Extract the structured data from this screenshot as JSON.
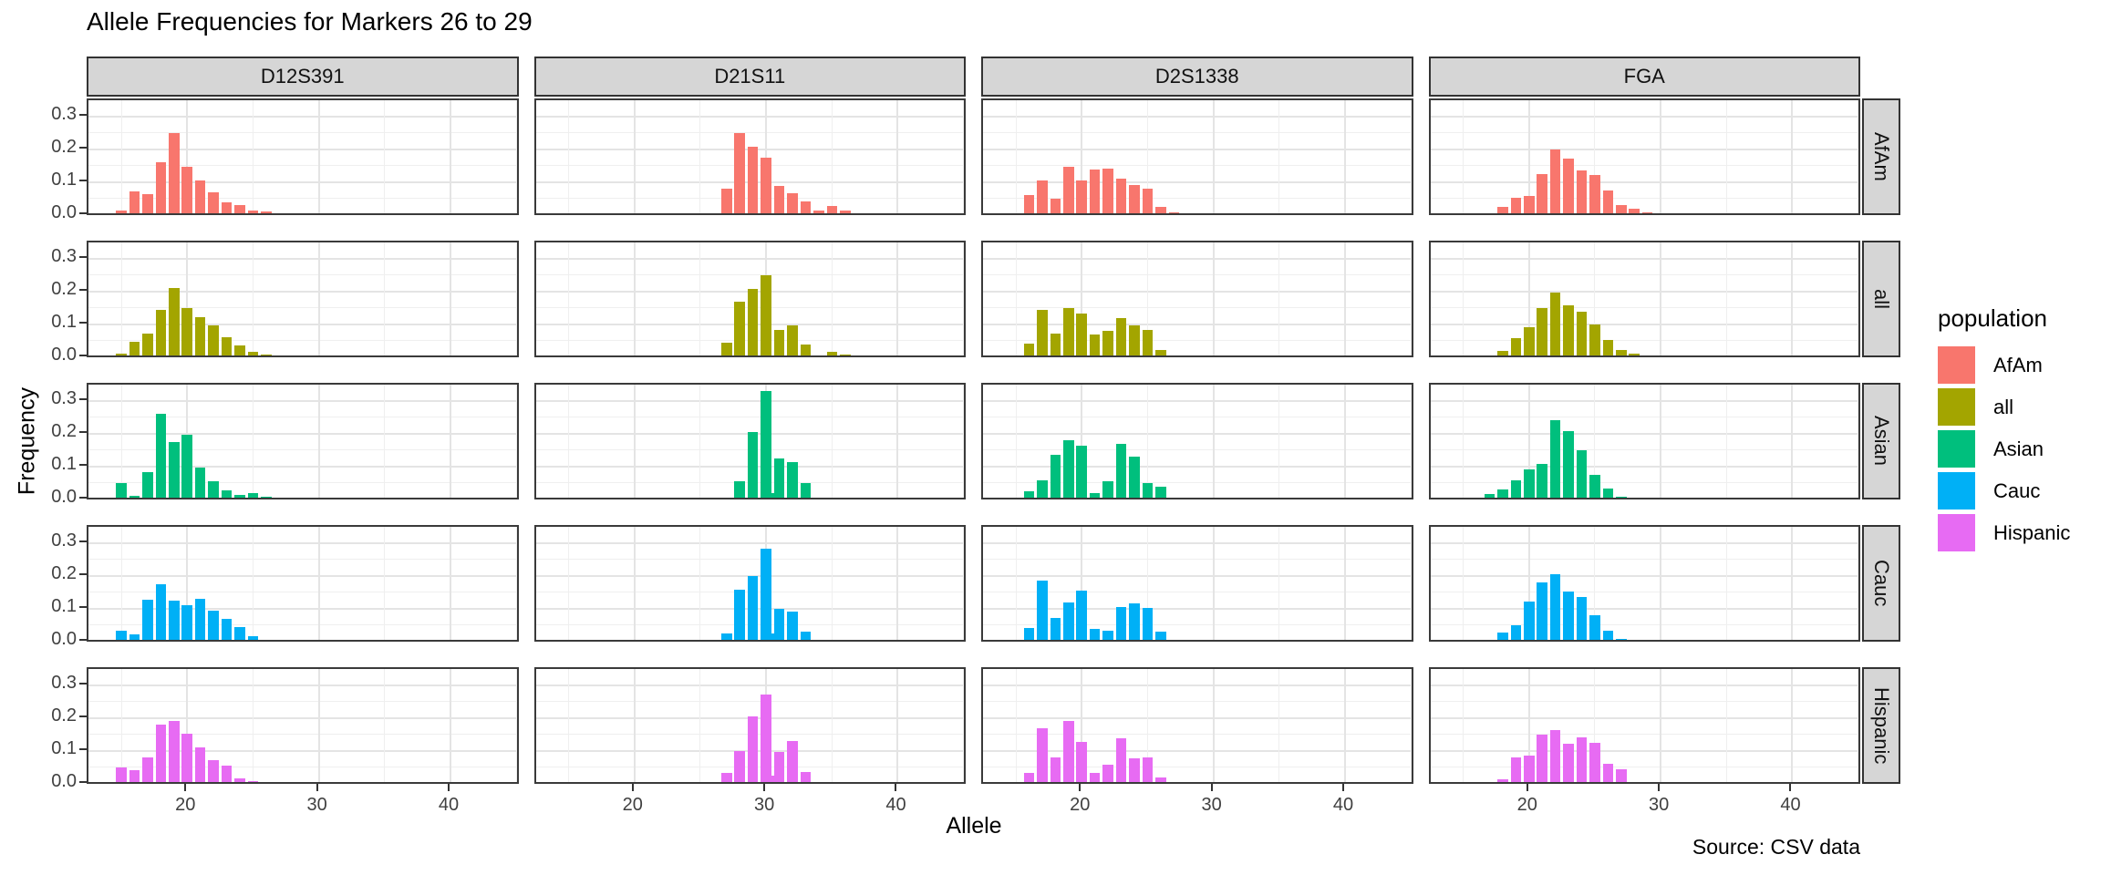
{
  "chart_data": {
    "type": "bar",
    "title": "Allele Frequencies for Markers 26 to 29",
    "xlabel": "Allele",
    "ylabel": "Frequency",
    "caption": "Source: CSV data",
    "legend_title": "population",
    "legend_position": "right",
    "grid": true,
    "x_ticks": [
      20,
      30,
      40
    ],
    "x_minor_ticks": [
      15,
      25,
      35,
      45
    ],
    "y_ticks": [
      "0.0",
      "0.1",
      "0.2",
      "0.3"
    ],
    "y_tick_values": [
      0,
      0.1,
      0.2,
      0.3
    ],
    "y_minor_values": [
      0.05,
      0.15,
      0.25
    ],
    "x_range": [
      12.5,
      45.3
    ],
    "y_range": [
      0,
      0.349
    ],
    "col_facets": [
      "D12S391",
      "D21S11",
      "D2S1338",
      "FGA"
    ],
    "row_facets": [
      "AfAm",
      "all",
      "Asian",
      "Cauc",
      "Hispanic"
    ],
    "populations": [
      {
        "name": "AfAm",
        "color": "#F8766D"
      },
      {
        "name": "all",
        "color": "#A3A500"
      },
      {
        "name": "Asian",
        "color": "#00BF7D"
      },
      {
        "name": "Cauc",
        "color": "#00B0F6"
      },
      {
        "name": "Hispanic",
        "color": "#E76BF3"
      }
    ],
    "panels": [
      {
        "marker": "D12S391",
        "population": "AfAm",
        "alleles": [
          15,
          16,
          17,
          18,
          19,
          20,
          21,
          22,
          23,
          24,
          25,
          26
        ],
        "freqs": [
          0.012,
          0.07,
          0.063,
          0.16,
          0.25,
          0.147,
          0.103,
          0.068,
          0.037,
          0.03,
          0.013,
          0.009
        ]
      },
      {
        "marker": "D21S11",
        "population": "AfAm",
        "alleles": [
          26,
          27,
          28,
          29,
          30,
          31,
          32,
          33,
          34,
          35,
          36,
          37,
          38,
          39
        ],
        "freqs": [
          0.005,
          0.08,
          0.25,
          0.208,
          0.175,
          0.088,
          0.065,
          0.04,
          0.012,
          0.026,
          0.012,
          0.004,
          0.003,
          0.003
        ]
      },
      {
        "marker": "D2S1338",
        "population": "AfAm",
        "alleles": [
          15,
          16,
          17,
          18,
          19,
          20,
          21,
          22,
          23,
          24,
          25,
          26,
          27
        ],
        "freqs": [
          0.005,
          0.06,
          0.105,
          0.048,
          0.145,
          0.105,
          0.138,
          0.14,
          0.11,
          0.09,
          0.08,
          0.024,
          0.008
        ]
      },
      {
        "marker": "FGA",
        "population": "AfAm",
        "alleles": [
          16,
          17,
          18,
          19,
          20,
          21,
          22,
          23,
          24,
          25,
          26,
          27,
          28,
          29,
          30,
          31
        ],
        "freqs": [
          0.003,
          0.005,
          0.024,
          0.052,
          0.057,
          0.125,
          0.2,
          0.172,
          0.135,
          0.12,
          0.073,
          0.03,
          0.018,
          0.008,
          0.004,
          0.002
        ]
      },
      {
        "marker": "D12S391",
        "population": "all",
        "alleles": [
          15,
          16,
          17,
          18,
          19,
          20,
          21,
          22,
          23,
          24,
          25,
          26,
          27
        ],
        "freqs": [
          0.011,
          0.045,
          0.07,
          0.143,
          0.21,
          0.148,
          0.12,
          0.096,
          0.059,
          0.036,
          0.016,
          0.007,
          0.002
        ]
      },
      {
        "marker": "D21S11",
        "population": "all",
        "alleles": [
          24,
          25,
          26,
          27,
          28,
          29,
          30,
          31,
          32,
          33,
          34,
          35,
          36,
          37,
          38
        ],
        "freqs": [
          0.002,
          0.003,
          0.002,
          0.043,
          0.167,
          0.208,
          0.248,
          0.083,
          0.096,
          0.038,
          0.005,
          0.014,
          0.006,
          0.002,
          0.002
        ]
      },
      {
        "marker": "D2S1338",
        "population": "all",
        "alleles": [
          15,
          16,
          17,
          18,
          19,
          20,
          21,
          22,
          23,
          24,
          25,
          26,
          27
        ],
        "freqs": [
          0.004,
          0.04,
          0.143,
          0.072,
          0.149,
          0.132,
          0.067,
          0.079,
          0.118,
          0.097,
          0.083,
          0.022,
          0.005
        ]
      },
      {
        "marker": "FGA",
        "population": "all",
        "alleles": [
          16,
          17,
          18,
          19,
          20,
          21,
          22,
          23,
          24,
          25,
          26,
          27,
          28,
          29,
          30,
          43.2
        ],
        "freqs": [
          0.002,
          0.004,
          0.018,
          0.056,
          0.09,
          0.148,
          0.196,
          0.156,
          0.137,
          0.098,
          0.052,
          0.021,
          0.01,
          0.004,
          0.002,
          0.002
        ]
      },
      {
        "marker": "D12S391",
        "population": "Asian",
        "alleles": [
          15,
          16,
          17,
          18,
          19,
          20,
          21,
          22,
          23,
          24,
          25,
          26,
          27
        ],
        "freqs": [
          0.05,
          0.011,
          0.082,
          0.26,
          0.175,
          0.195,
          0.097,
          0.055,
          0.027,
          0.012,
          0.019,
          0.007,
          0.005
        ]
      },
      {
        "marker": "D21S11",
        "population": "Asian",
        "alleles": [
          27,
          28,
          29,
          30,
          30.2,
          31,
          32,
          33,
          34
        ],
        "freqs": [
          0.005,
          0.053,
          0.203,
          0.33,
          0.017,
          0.124,
          0.113,
          0.048,
          0.003
        ]
      },
      {
        "marker": "D2S1338",
        "population": "Asian",
        "alleles": [
          16,
          17,
          18,
          19,
          20,
          21,
          22,
          23,
          24,
          25,
          26,
          27
        ],
        "freqs": [
          0.025,
          0.056,
          0.135,
          0.18,
          0.162,
          0.018,
          0.055,
          0.167,
          0.13,
          0.05,
          0.038,
          0.005
        ]
      },
      {
        "marker": "FGA",
        "population": "Asian",
        "alleles": [
          17,
          18,
          19,
          20,
          21,
          22,
          23,
          24,
          25,
          26,
          27,
          43.2
        ],
        "freqs": [
          0.014,
          0.028,
          0.057,
          0.09,
          0.106,
          0.24,
          0.208,
          0.15,
          0.075,
          0.033,
          0.006,
          0.005
        ]
      },
      {
        "marker": "D12S391",
        "population": "Cauc",
        "alleles": [
          15,
          16,
          17,
          18,
          19,
          20,
          21,
          22,
          23,
          24,
          25,
          26,
          27
        ],
        "freqs": [
          0.031,
          0.021,
          0.127,
          0.173,
          0.125,
          0.11,
          0.128,
          0.093,
          0.067,
          0.044,
          0.015,
          0.003,
          0.002
        ]
      },
      {
        "marker": "D21S11",
        "population": "Cauc",
        "alleles": [
          25,
          27,
          28,
          29,
          30,
          30.2,
          31,
          32,
          33,
          34,
          35,
          36
        ],
        "freqs": [
          0.003,
          0.023,
          0.158,
          0.2,
          0.283,
          0.023,
          0.098,
          0.09,
          0.028,
          0.003,
          0.004,
          0.002
        ]
      },
      {
        "marker": "D2S1338",
        "population": "Cauc",
        "alleles": [
          15,
          16,
          17,
          18,
          19,
          20,
          21,
          22,
          23,
          24,
          25,
          26,
          27
        ],
        "freqs": [
          0.003,
          0.04,
          0.185,
          0.072,
          0.119,
          0.154,
          0.038,
          0.033,
          0.103,
          0.116,
          0.102,
          0.029,
          0.004
        ]
      },
      {
        "marker": "FGA",
        "population": "Cauc",
        "alleles": [
          18,
          19,
          20,
          21,
          22,
          23,
          24,
          25,
          26,
          27,
          28
        ],
        "freqs": [
          0.027,
          0.05,
          0.122,
          0.178,
          0.205,
          0.152,
          0.136,
          0.078,
          0.031,
          0.007,
          0.002
        ]
      },
      {
        "marker": "D12S391",
        "population": "Hispanic",
        "alleles": [
          15,
          16,
          17,
          18,
          19,
          20,
          21,
          22,
          23,
          24,
          25,
          26,
          27
        ],
        "freqs": [
          0.048,
          0.041,
          0.08,
          0.178,
          0.19,
          0.152,
          0.11,
          0.072,
          0.055,
          0.015,
          0.006,
          0.005,
          0.005
        ]
      },
      {
        "marker": "D21S11",
        "population": "Hispanic",
        "alleles": [
          24,
          26,
          27,
          28,
          29,
          30,
          30.2,
          31,
          32,
          33,
          34
        ],
        "freqs": [
          0.002,
          0.004,
          0.031,
          0.098,
          0.205,
          0.27,
          0.024,
          0.096,
          0.128,
          0.034,
          0.004
        ]
      },
      {
        "marker": "D2S1338",
        "population": "Hispanic",
        "alleles": [
          16,
          17,
          18,
          19,
          20,
          21,
          22,
          23,
          24,
          25,
          26,
          27
        ],
        "freqs": [
          0.031,
          0.168,
          0.079,
          0.19,
          0.127,
          0.031,
          0.056,
          0.137,
          0.076,
          0.079,
          0.018,
          0.002
        ]
      },
      {
        "marker": "FGA",
        "population": "Hispanic",
        "alleles": [
          17,
          18,
          19,
          20,
          21,
          22,
          23,
          24,
          25,
          26,
          27,
          28,
          29,
          30
        ],
        "freqs": [
          0.003,
          0.013,
          0.078,
          0.085,
          0.15,
          0.163,
          0.12,
          0.14,
          0.123,
          0.06,
          0.043,
          0.003,
          0.002,
          0.002
        ]
      }
    ]
  },
  "style": {
    "strip_fill": "#d6d6d6",
    "panel_border": "#3a3a3a",
    "grid_major": "#e4e4e4",
    "grid_minor": "#efefef",
    "axis_text": "#404040"
  }
}
